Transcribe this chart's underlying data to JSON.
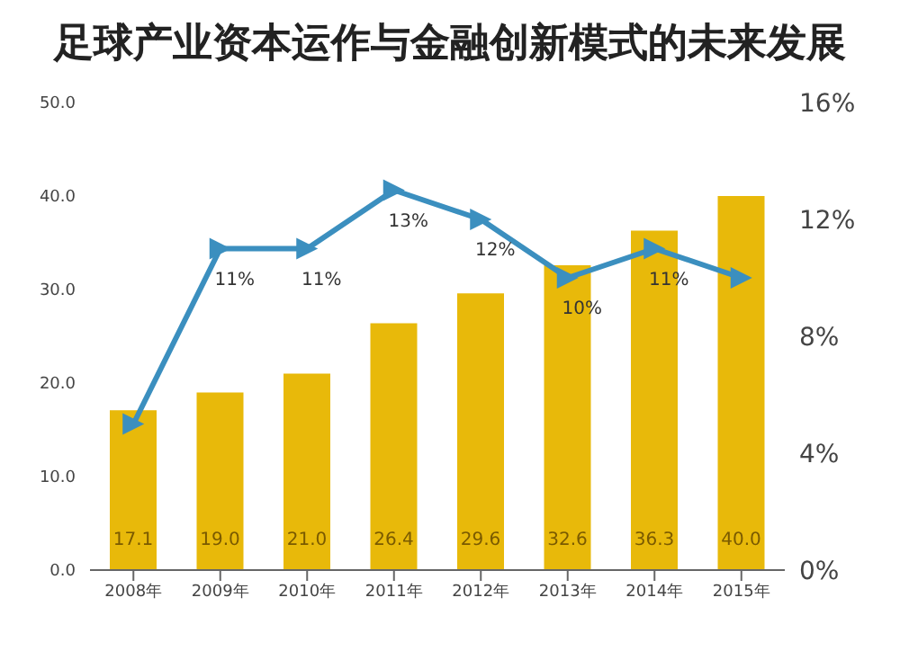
{
  "chart_data": {
    "type": "bar",
    "title": "足球产业资本运作与金融创新模式的未来发展",
    "categories": [
      "2008年",
      "2009年",
      "2010年",
      "2011年",
      "2012年",
      "2013年",
      "2014年",
      "2015年"
    ],
    "series": [
      {
        "color": "#e8b90a",
        "values": [
          17.1,
          19.0,
          21.0,
          26.4,
          29.6,
          32.6,
          36.3,
          40.0
        ],
        "value_labels": [
          "17.1",
          "19.0",
          "21.0",
          "26.4",
          "29.6",
          "32.6",
          "36.3",
          "40.0"
        ]
      },
      {
        "type": "line",
        "axis": "y2",
        "color": "#3b8fbf",
        "marker": "triangle",
        "values": [
          5,
          11,
          11,
          13,
          12,
          10,
          11,
          10
        ],
        "value_labels": [
          null,
          "11%",
          "11%",
          "13%",
          "12%",
          "10%",
          "11%",
          null
        ]
      }
    ],
    "ylim": [
      0,
      50
    ],
    "yticks": [
      {
        "value": 0,
        "label": "0.0"
      },
      {
        "value": 10,
        "label": "10.0"
      },
      {
        "value": 20,
        "label": "20.0"
      },
      {
        "value": 30,
        "label": "30.0"
      },
      {
        "value": 40,
        "label": "40.0"
      },
      {
        "value": 50,
        "label": "50.0"
      }
    ],
    "y2lim": [
      0,
      16
    ],
    "y2ticks": [
      {
        "value": 0,
        "label": "0%"
      },
      {
        "value": 4,
        "label": "4%"
      },
      {
        "value": 8,
        "label": "8%"
      },
      {
        "value": 12,
        "label": "12%"
      },
      {
        "value": 16,
        "label": "16%"
      }
    ],
    "grid": false,
    "legend": false
  }
}
